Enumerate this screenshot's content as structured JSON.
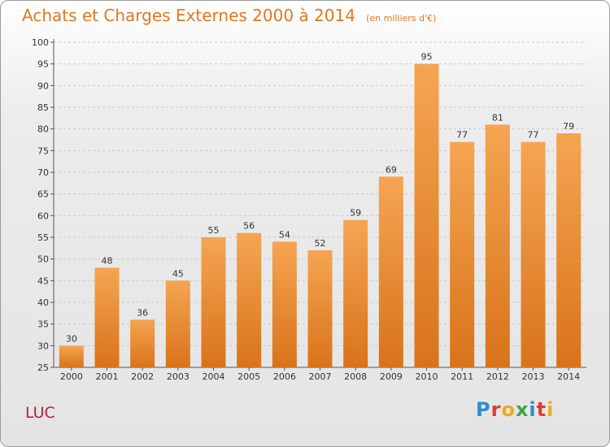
{
  "header": {
    "title": "Achats et Charges Externes 2000 à 2014",
    "unit": "(en milliers d'€)"
  },
  "footer": {
    "place": "LUC",
    "brand_letters": [
      {
        "ch": "P",
        "color": "#2a8fd0"
      },
      {
        "ch": "r",
        "color": "#e03c2c"
      },
      {
        "ch": "o",
        "color": "#f0a820"
      },
      {
        "ch": "x",
        "color": "#3aa83a"
      },
      {
        "ch": "i",
        "color": "#2a8fd0"
      },
      {
        "ch": "t",
        "color": "#e03c2c"
      },
      {
        "ch": "i",
        "color": "#f0a820"
      }
    ]
  },
  "colors": {
    "bar_top": "#f5a552",
    "bar_bottom": "#d9731a",
    "title": "#e07820",
    "place": "#b8203a",
    "grid": "#c8c8c8"
  },
  "chart_data": {
    "type": "bar",
    "title": "Achats et Charges Externes 2000 à 2014",
    "subtitle": "(en milliers d'€)",
    "xlabel": "",
    "ylabel": "",
    "categories": [
      "2000",
      "2001",
      "2002",
      "2003",
      "2004",
      "2005",
      "2006",
      "2007",
      "2008",
      "2009",
      "2010",
      "2011",
      "2012",
      "2013",
      "2014"
    ],
    "values": [
      30,
      48,
      36,
      45,
      55,
      56,
      54,
      52,
      59,
      69,
      95,
      77,
      81,
      77,
      79
    ],
    "ylim": [
      25,
      100
    ],
    "yticks": [
      25,
      30,
      35,
      40,
      45,
      50,
      55,
      60,
      65,
      70,
      75,
      80,
      85,
      90,
      95,
      100
    ],
    "grid": "horizontal dashed",
    "legend": "none"
  }
}
